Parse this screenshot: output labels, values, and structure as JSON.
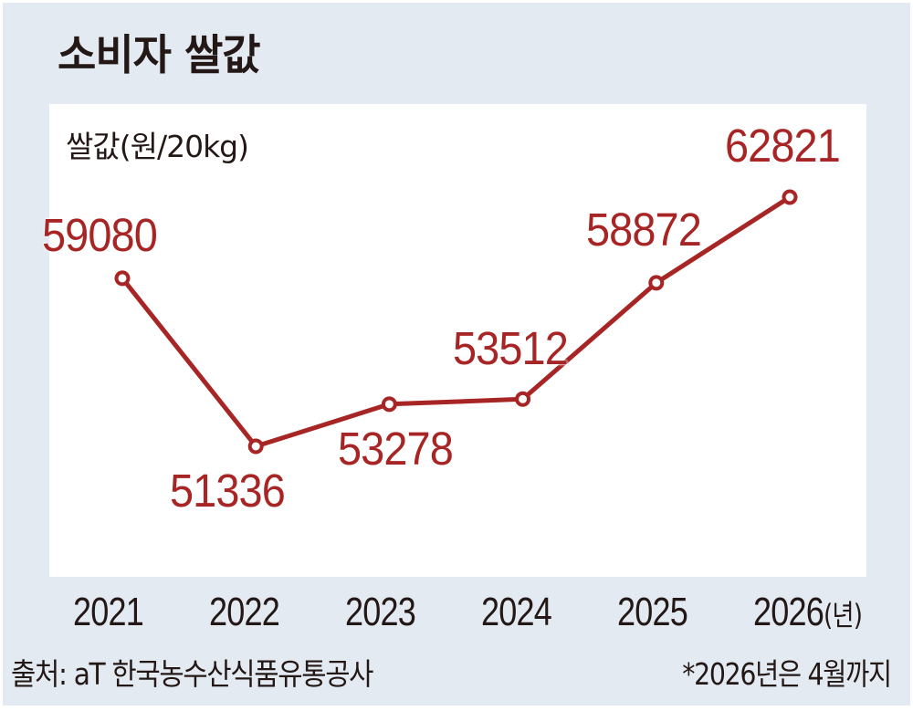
{
  "header": {
    "title": "소비자 쌀값"
  },
  "chart_data": {
    "type": "line",
    "title": "소비자 쌀값",
    "ylabel": "쌀값(원/20kg)",
    "xlabel": "(년)",
    "categories": [
      "2021",
      "2022",
      "2023",
      "2024",
      "2025",
      "2026"
    ],
    "values": [
      59080,
      51336,
      53278,
      53512,
      58872,
      62821
    ],
    "series": [
      {
        "name": "쌀값(원/20kg)",
        "values": [
          59080,
          51336,
          53278,
          53512,
          58872,
          62821
        ]
      }
    ],
    "data_labels": [
      "59080",
      "51336",
      "53278",
      "53512",
      "58872",
      "62821"
    ],
    "x_unit": "(년)",
    "grid": false,
    "legend": "none",
    "line_color": "#a82525",
    "annotations": [
      "*2026년은 4월까지"
    ],
    "source": "출처: aT 한국농수산식품유통공사"
  },
  "axis": {
    "unit_label": "쌀값(원/20kg)",
    "x_ticks": [
      "2021",
      "2022",
      "2023",
      "2024",
      "2025",
      "2026"
    ],
    "x_unit": "(년)"
  },
  "footer": {
    "source": "출처: aT 한국농수산식품유통공사",
    "note": "*2026년은 4월까지"
  },
  "colors": {
    "background": "#e4eaf2",
    "panel": "#ffffff",
    "line": "#a82525",
    "text": "#231815"
  }
}
